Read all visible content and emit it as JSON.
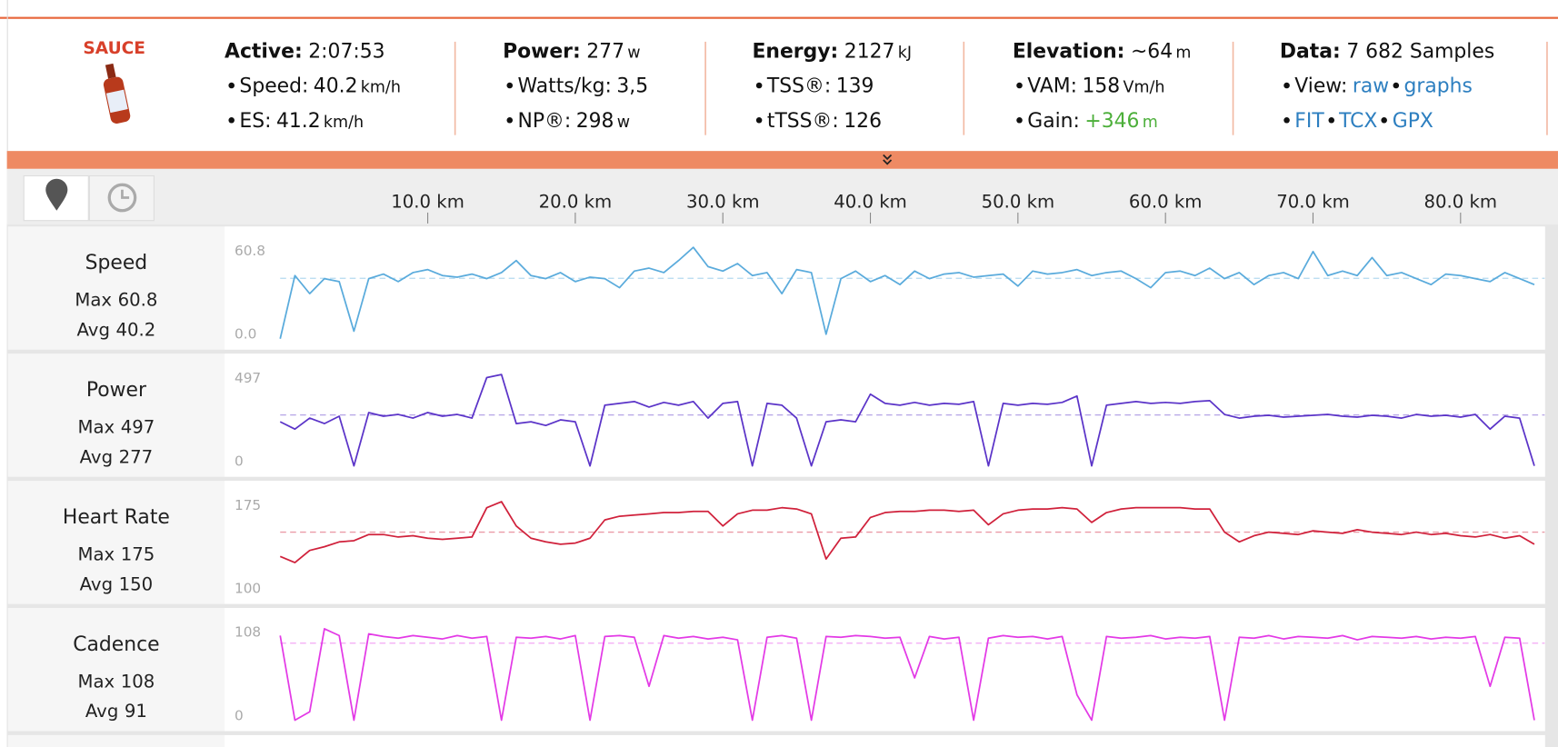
{
  "header": {
    "logo": "SAUCE",
    "columns": [
      {
        "title": {
          "label": "Active:",
          "value": "2:07:53"
        },
        "items": [
          {
            "label": "Speed:",
            "value": "40.2",
            "unit": "km/h"
          },
          {
            "label": "ES:",
            "value": "41.2",
            "unit": "km/h"
          }
        ]
      },
      {
        "title": {
          "label": "Power:",
          "value": "277",
          "unit": "w"
        },
        "items": [
          {
            "label": "Watts/kg:",
            "value": "3,5"
          },
          {
            "label": "NP®:",
            "value": "298",
            "unit": "w"
          }
        ]
      },
      {
        "title": {
          "label": "Energy:",
          "value": "2127",
          "unit": "kJ"
        },
        "items": [
          {
            "label": "TSS®:",
            "value": "139"
          },
          {
            "label": "tTSS®:",
            "value": "126"
          }
        ]
      },
      {
        "title": {
          "label": "Elevation:",
          "value": "~64",
          "unit": "m"
        },
        "items": [
          {
            "label": "VAM:",
            "value": "158",
            "unit": "Vm/h"
          },
          {
            "label": "Gain:",
            "value": "+346",
            "unit": "m",
            "color": "#4caf3a"
          }
        ]
      },
      {
        "title": {
          "label": "Data:",
          "value": "7 682 Samples"
        },
        "items": [
          {
            "label": "View:",
            "links": [
              "raw",
              "graphs"
            ]
          },
          {
            "links": [
              "FIT",
              "TCX",
              "GPX"
            ]
          }
        ]
      }
    ]
  },
  "chart_data": [
    {
      "type": "line",
      "title": "Speed",
      "max_label": "Max",
      "max": 60.8,
      "avg_label": "Avg",
      "avg": 40.2,
      "color": "#5aabdc",
      "xlim": [
        0,
        85.7
      ],
      "xticks": [
        {
          "value": 10,
          "label": "10.0 km"
        },
        {
          "value": 20,
          "label": "20.0 km"
        },
        {
          "value": 30,
          "label": "30.0 km"
        },
        {
          "value": 40,
          "label": "40.0 km"
        },
        {
          "value": 50,
          "label": "50.0 km"
        },
        {
          "value": 60,
          "label": "60.0 km"
        },
        {
          "value": 70,
          "label": "70.0 km"
        },
        {
          "value": 80,
          "label": "80.0 km"
        }
      ],
      "ylim": [
        0,
        60.8
      ],
      "yticks": [
        {
          "value": 0,
          "label": "0.0"
        },
        60.8
      ],
      "x": [
        0,
        1,
        2,
        3,
        4,
        5,
        6,
        7,
        8,
        9,
        10,
        11,
        12,
        13,
        14,
        15,
        16,
        17,
        18,
        19,
        20,
        21,
        22,
        23,
        24,
        25,
        26,
        27,
        28,
        29,
        30,
        31,
        32,
        33,
        34,
        35,
        36,
        37,
        38,
        39,
        40,
        41,
        42,
        43,
        44,
        45,
        46,
        47,
        48,
        49,
        50,
        51,
        52,
        53,
        54,
        55,
        56,
        57,
        58,
        59,
        60,
        61,
        62,
        63,
        64,
        65,
        66,
        67,
        68,
        69,
        70,
        71,
        72,
        73,
        74,
        75,
        76,
        77,
        78,
        79,
        80,
        81,
        82,
        83,
        84,
        85
      ],
      "values": [
        0,
        42,
        30,
        40,
        38,
        5,
        40,
        43,
        38,
        44,
        46,
        42,
        41,
        43,
        40,
        44,
        52,
        42,
        40,
        44,
        38,
        41,
        40,
        34,
        45,
        47,
        44,
        52,
        60.8,
        48,
        45,
        50,
        42,
        44,
        30,
        46,
        44,
        3,
        40,
        45,
        38,
        42,
        36,
        45,
        40,
        43,
        44,
        41,
        42,
        43,
        35,
        45,
        43,
        44,
        46,
        42,
        44,
        45,
        40,
        34,
        44,
        45,
        42,
        47,
        40,
        44,
        36,
        42,
        44,
        40,
        58,
        42,
        45,
        42,
        54,
        42,
        44,
        40,
        36,
        43,
        42,
        40,
        38,
        44,
        40,
        36
      ]
    },
    {
      "type": "line",
      "title": "Power",
      "max_label": "Max",
      "max": 497,
      "avg_label": "Avg",
      "avg": 277,
      "color": "#5b34c8",
      "xlim": [
        0,
        85.7
      ],
      "ylim": [
        0,
        497
      ],
      "yticks": [
        0,
        497
      ],
      "x": [
        0,
        1,
        2,
        3,
        4,
        5,
        6,
        7,
        8,
        9,
        10,
        11,
        12,
        13,
        14,
        15,
        16,
        17,
        18,
        19,
        20,
        21,
        22,
        23,
        24,
        25,
        26,
        27,
        28,
        29,
        30,
        31,
        32,
        33,
        34,
        35,
        36,
        37,
        38,
        39,
        40,
        41,
        42,
        43,
        44,
        45,
        46,
        47,
        48,
        49,
        50,
        51,
        52,
        53,
        54,
        55,
        56,
        57,
        58,
        59,
        60,
        61,
        62,
        63,
        64,
        65,
        66,
        67,
        68,
        69,
        70,
        71,
        72,
        73,
        74,
        75,
        76,
        77,
        78,
        79,
        80,
        81,
        82,
        83,
        84,
        85
      ],
      "values": [
        240,
        200,
        260,
        230,
        270,
        0,
        290,
        270,
        280,
        260,
        290,
        270,
        280,
        260,
        480,
        497,
        230,
        240,
        220,
        250,
        240,
        0,
        330,
        340,
        350,
        320,
        345,
        330,
        350,
        260,
        340,
        350,
        0,
        340,
        330,
        260,
        0,
        240,
        250,
        240,
        390,
        340,
        330,
        345,
        330,
        340,
        335,
        350,
        0,
        340,
        330,
        340,
        335,
        345,
        380,
        0,
        330,
        340,
        350,
        340,
        345,
        340,
        350,
        355,
        280,
        260,
        270,
        275,
        265,
        270,
        275,
        280,
        270,
        265,
        275,
        270,
        260,
        280,
        270,
        275,
        265,
        280,
        200,
        270,
        260,
        0
      ]
    },
    {
      "type": "line",
      "title": "Heart Rate",
      "max_label": "Max",
      "max": 175,
      "avg_label": "Avg",
      "avg": 150,
      "color": "#d0213b",
      "xlim": [
        0,
        85.7
      ],
      "ylim": [
        100,
        175
      ],
      "yticks": [
        100,
        175
      ],
      "x": [
        0,
        1,
        2,
        3,
        4,
        5,
        6,
        7,
        8,
        9,
        10,
        11,
        12,
        13,
        14,
        15,
        16,
        17,
        18,
        19,
        20,
        21,
        22,
        23,
        24,
        25,
        26,
        27,
        28,
        29,
        30,
        31,
        32,
        33,
        34,
        35,
        36,
        37,
        38,
        39,
        40,
        41,
        42,
        43,
        44,
        45,
        46,
        47,
        48,
        49,
        50,
        51,
        52,
        53,
        54,
        55,
        56,
        57,
        58,
        59,
        60,
        61,
        62,
        63,
        64,
        65,
        66,
        67,
        68,
        69,
        70,
        71,
        72,
        73,
        74,
        75,
        76,
        77,
        78,
        79,
        80,
        81,
        82,
        83,
        84,
        85
      ],
      "values": [
        130,
        125,
        135,
        138,
        142,
        143,
        148,
        148,
        146,
        147,
        145,
        144,
        145,
        146,
        170,
        175,
        155,
        145,
        142,
        140,
        141,
        145,
        160,
        163,
        164,
        165,
        166,
        166,
        167,
        167,
        155,
        165,
        168,
        168,
        170,
        169,
        165,
        128,
        145,
        146,
        162,
        166,
        167,
        167,
        168,
        168,
        167,
        168,
        156,
        165,
        168,
        169,
        169,
        170,
        169,
        158,
        166,
        169,
        170,
        170,
        170,
        170,
        169,
        169,
        150,
        142,
        147,
        150,
        149,
        148,
        151,
        150,
        149,
        152,
        150,
        149,
        148,
        150,
        148,
        149,
        147,
        146,
        148,
        145,
        147,
        140
      ]
    },
    {
      "type": "line",
      "title": "Cadence",
      "max_label": "Max",
      "max": 108,
      "avg_label": "Avg",
      "avg": 91,
      "color": "#e33ae6",
      "xlim": [
        0,
        85.7
      ],
      "ylim": [
        0,
        108
      ],
      "yticks": [
        0,
        108
      ],
      "x": [
        0,
        1,
        2,
        3,
        4,
        5,
        6,
        7,
        8,
        9,
        10,
        11,
        12,
        13,
        14,
        15,
        16,
        17,
        18,
        19,
        20,
        21,
        22,
        23,
        24,
        25,
        26,
        27,
        28,
        29,
        30,
        31,
        32,
        33,
        34,
        35,
        36,
        37,
        38,
        39,
        40,
        41,
        42,
        43,
        44,
        45,
        46,
        47,
        48,
        49,
        50,
        51,
        52,
        53,
        54,
        55,
        56,
        57,
        58,
        59,
        60,
        61,
        62,
        63,
        64,
        65,
        66,
        67,
        68,
        69,
        70,
        71,
        72,
        73,
        74,
        75,
        76,
        77,
        78,
        79,
        80,
        81,
        82,
        83,
        84,
        85
      ],
      "values": [
        100,
        0,
        10,
        108,
        100,
        0,
        102,
        99,
        97,
        100,
        98,
        96,
        100,
        97,
        99,
        0,
        98,
        97,
        99,
        96,
        100,
        0,
        99,
        100,
        98,
        40,
        100,
        97,
        99,
        96,
        98,
        95,
        0,
        98,
        100,
        97,
        0,
        99,
        98,
        100,
        99,
        97,
        98,
        50,
        99,
        96,
        98,
        0,
        97,
        100,
        98,
        99,
        96,
        99,
        30,
        0,
        99,
        97,
        98,
        100,
        96,
        98,
        97,
        99,
        0,
        98,
        97,
        100,
        96,
        99,
        98,
        97,
        100,
        95,
        99,
        98,
        97,
        99,
        96,
        98,
        97,
        99,
        40,
        98,
        97,
        0
      ]
    }
  ]
}
